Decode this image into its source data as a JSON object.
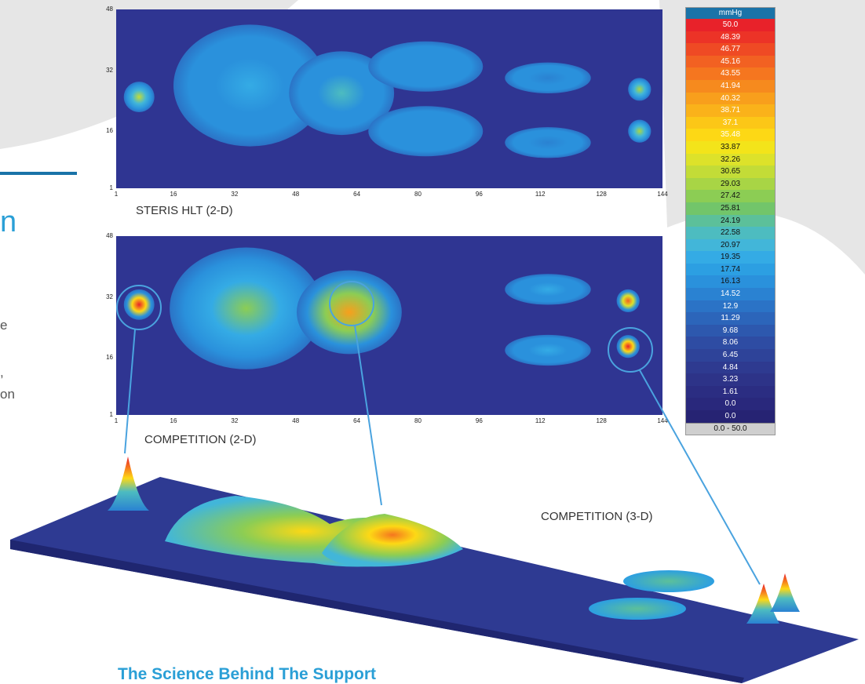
{
  "chart_data": [
    {
      "type": "heatmap",
      "title": "",
      "caption": "STERIS HLT (2-D)",
      "xlabel": "",
      "ylabel": "",
      "xlim": [
        1,
        144
      ],
      "ylim": [
        1,
        48
      ],
      "xticks": [
        "1",
        "16",
        "32",
        "48",
        "64",
        "80",
        "96",
        "112",
        "128",
        "144"
      ],
      "yticks": [
        "48",
        "32",
        "16",
        "1"
      ],
      "regions": [
        {
          "name": "head",
          "x": 7,
          "y": 25,
          "value": 30.65
        },
        {
          "name": "upper-body",
          "x": 36,
          "y": 28,
          "value": 19.35
        },
        {
          "name": "pelvis",
          "x": 60,
          "y": 26,
          "value": 22.58
        },
        {
          "name": "thigh-upper",
          "x": 82,
          "y": 33,
          "value": 16.13
        },
        {
          "name": "thigh-lower",
          "x": 82,
          "y": 16,
          "value": 16.13
        },
        {
          "name": "calf-upper",
          "x": 114,
          "y": 30,
          "value": 14.52
        },
        {
          "name": "calf-lower",
          "x": 114,
          "y": 13,
          "value": 14.52
        },
        {
          "name": "heel-upper",
          "x": 138,
          "y": 27,
          "value": 29.03
        },
        {
          "name": "heel-lower",
          "x": 138,
          "y": 16,
          "value": 29.03
        }
      ]
    },
    {
      "type": "heatmap",
      "title": "",
      "caption": "COMPETITION (2-D)",
      "xlabel": "",
      "ylabel": "",
      "xlim": [
        1,
        144
      ],
      "ylim": [
        1,
        48
      ],
      "xticks": [
        "1",
        "16",
        "32",
        "48",
        "64",
        "80",
        "96",
        "112",
        "128",
        "144"
      ],
      "yticks": [
        "48",
        "32",
        "16",
        "1"
      ],
      "regions": [
        {
          "name": "head",
          "x": 7,
          "y": 30,
          "value": 50.0
        },
        {
          "name": "upper-body",
          "x": 35,
          "y": 29,
          "value": 27.42
        },
        {
          "name": "pelvis",
          "x": 62,
          "y": 28,
          "value": 40.32
        },
        {
          "name": "calf-upper",
          "x": 114,
          "y": 34,
          "value": 19.35
        },
        {
          "name": "calf-lower",
          "x": 114,
          "y": 18,
          "value": 19.35
        },
        {
          "name": "heel-upper",
          "x": 135,
          "y": 31,
          "value": 45.16
        },
        {
          "name": "heel-lower",
          "x": 135,
          "y": 19,
          "value": 50.0
        }
      ]
    }
  ],
  "surface_caption": "COMPETITION (3-D)",
  "legend": {
    "unit": "mmHg",
    "range_label": "0.0 - 50.0",
    "entries": [
      {
        "label": "50.0",
        "color": "#e8222a"
      },
      {
        "label": "48.39",
        "color": "#ec3327"
      },
      {
        "label": "46.77",
        "color": "#ef4a24"
      },
      {
        "label": "45.16",
        "color": "#f26122"
      },
      {
        "label": "43.55",
        "color": "#f5761f"
      },
      {
        "label": "41.94",
        "color": "#f68a1e"
      },
      {
        "label": "40.32",
        "color": "#f89f1c"
      },
      {
        "label": "38.71",
        "color": "#fab21a"
      },
      {
        "label": "37.1",
        "color": "#fcc717"
      },
      {
        "label": "35.48",
        "color": "#fdd815"
      },
      {
        "label": "33.87",
        "color": "#f3e41a"
      },
      {
        "label": "32.26",
        "color": "#dde22a"
      },
      {
        "label": "30.65",
        "color": "#c3dc37"
      },
      {
        "label": "29.03",
        "color": "#a8d545"
      },
      {
        "label": "27.42",
        "color": "#8ccd54"
      },
      {
        "label": "25.81",
        "color": "#72c56a"
      },
      {
        "label": "24.19",
        "color": "#5cc09a"
      },
      {
        "label": "22.58",
        "color": "#4dbcc0"
      },
      {
        "label": "20.97",
        "color": "#42b6d9"
      },
      {
        "label": "19.35",
        "color": "#34abe5"
      },
      {
        "label": "17.74",
        "color": "#2c9fe2"
      },
      {
        "label": "16.13",
        "color": "#2a91dc"
      },
      {
        "label": "14.52",
        "color": "#2a82d2"
      },
      {
        "label": "12.9",
        "color": "#2b73c6"
      },
      {
        "label": "11.29",
        "color": "#2c65ba"
      },
      {
        "label": "9.68",
        "color": "#2d58ae"
      },
      {
        "label": "8.06",
        "color": "#2e4ca3"
      },
      {
        "label": "6.45",
        "color": "#2e4399"
      },
      {
        "label": "4.84",
        "color": "#2e3a90"
      },
      {
        "label": "3.23",
        "color": "#2d3388"
      },
      {
        "label": "1.61",
        "color": "#2b2d82"
      },
      {
        "label": "0.0",
        "color": "#29287c"
      },
      {
        "label": "0.0",
        "color": "#262373"
      }
    ]
  },
  "side_text": {
    "fragment_1": "n",
    "fragment_2": "e",
    "fragment_3": ",",
    "fragment_4": "on"
  },
  "footer": {
    "heading": "The Science Behind The Support"
  },
  "colors": {
    "background_plot": "#2f3592",
    "accent": "#1a73a8",
    "footer_text": "#2a9fd6",
    "callout": "#4aa3df"
  }
}
